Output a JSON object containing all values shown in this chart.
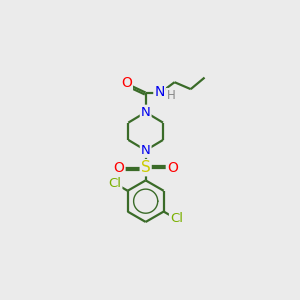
{
  "bg_color": "#ebebeb",
  "bond_color": "#3a6b28",
  "atom_colors": {
    "N": "#0000ee",
    "O": "#ff0000",
    "S": "#cccc00",
    "Cl": "#7ab000",
    "H": "#888888",
    "C": "#3a6b28"
  },
  "figsize": [
    3.0,
    3.0
  ],
  "dpi": 100,
  "bond_lw": 1.6,
  "font_size_atom": 9.5,
  "font_size_H": 8.5
}
